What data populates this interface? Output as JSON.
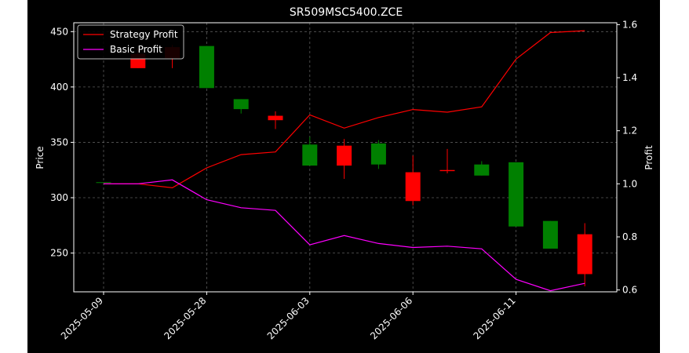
{
  "chart_data": {
    "type": "candlestick+line",
    "title": "SR509MSC5400.ZCE",
    "xlabel": "",
    "ylabel": "Price",
    "y2label": "Profit",
    "ylim": [
      215,
      458
    ],
    "y2lim": [
      0.593,
      1.607
    ],
    "yticks": [
      250,
      300,
      350,
      400,
      450
    ],
    "y2ticks": [
      0.6,
      0.8,
      1.0,
      1.2,
      1.4,
      1.6
    ],
    "y2ticklabels": [
      "0.6",
      "0.8",
      "1.0",
      "1.2",
      "1.4",
      "1.6"
    ],
    "xticks": [
      {
        "index": 0,
        "label": "2025-05-09"
      },
      {
        "index": 3,
        "label": "2025-05-28"
      },
      {
        "index": 6,
        "label": "2025-06-03"
      },
      {
        "index": 9,
        "label": "2025-06-06"
      },
      {
        "index": 12,
        "label": "2025-06-11"
      }
    ],
    "grid": true,
    "legend_position": "top-left",
    "colors": {
      "background": "#000000",
      "up": "#008000",
      "down": "#ff0000",
      "strategy": "#ff0000",
      "basic": "#ff00ff",
      "text": "#ffffff",
      "grid": "#808080"
    },
    "candles": [
      {
        "i": 0,
        "open": 314,
        "close": 314,
        "high": 314,
        "low": 314
      },
      {
        "i": 1,
        "open": 430,
        "close": 417,
        "high": 435,
        "low": 417
      },
      {
        "i": 2,
        "open": 436,
        "close": 426,
        "high": 438,
        "low": 417
      },
      {
        "i": 3,
        "open": 399,
        "close": 437,
        "high": 437,
        "low": 399
      },
      {
        "i": 4,
        "open": 380,
        "close": 389,
        "high": 389,
        "low": 376
      },
      {
        "i": 5,
        "open": 374,
        "close": 370,
        "high": 378,
        "low": 362
      },
      {
        "i": 6,
        "open": 329,
        "close": 348,
        "high": 355,
        "low": 329
      },
      {
        "i": 7,
        "open": 347,
        "close": 329,
        "high": 353,
        "low": 317
      },
      {
        "i": 8,
        "open": 330,
        "close": 349,
        "high": 352,
        "low": 326
      },
      {
        "i": 9,
        "open": 323,
        "close": 297,
        "high": 338,
        "low": 293
      },
      {
        "i": 10,
        "open": 325,
        "close": 324,
        "high": 344,
        "low": 322
      },
      {
        "i": 11,
        "open": 320,
        "close": 330,
        "high": 333,
        "low": 320
      },
      {
        "i": 12,
        "open": 274,
        "close": 332,
        "high": 332,
        "low": 274
      },
      {
        "i": 13,
        "open": 254,
        "close": 279,
        "high": 279,
        "low": 254
      },
      {
        "i": 14,
        "open": 267,
        "close": 231,
        "high": 277,
        "low": 220
      }
    ],
    "series": [
      {
        "name": "Strategy Profit",
        "axis": "right",
        "x": [
          0,
          1,
          2,
          3,
          4,
          5,
          6,
          7,
          8,
          9,
          10,
          11,
          12,
          13,
          14
        ],
        "values": [
          1.0,
          1.0,
          0.985,
          1.06,
          1.11,
          1.12,
          1.26,
          1.21,
          1.25,
          1.28,
          1.27,
          1.29,
          1.47,
          1.57,
          1.577
        ]
      },
      {
        "name": "Basic Profit",
        "axis": "right",
        "x": [
          0,
          1,
          2,
          3,
          4,
          5,
          6,
          7,
          8,
          9,
          10,
          11,
          12,
          13,
          14
        ],
        "values": [
          1.0,
          1.0,
          1.015,
          0.94,
          0.91,
          0.9,
          0.77,
          0.805,
          0.775,
          0.76,
          0.765,
          0.755,
          0.64,
          0.597,
          0.625
        ]
      }
    ]
  }
}
